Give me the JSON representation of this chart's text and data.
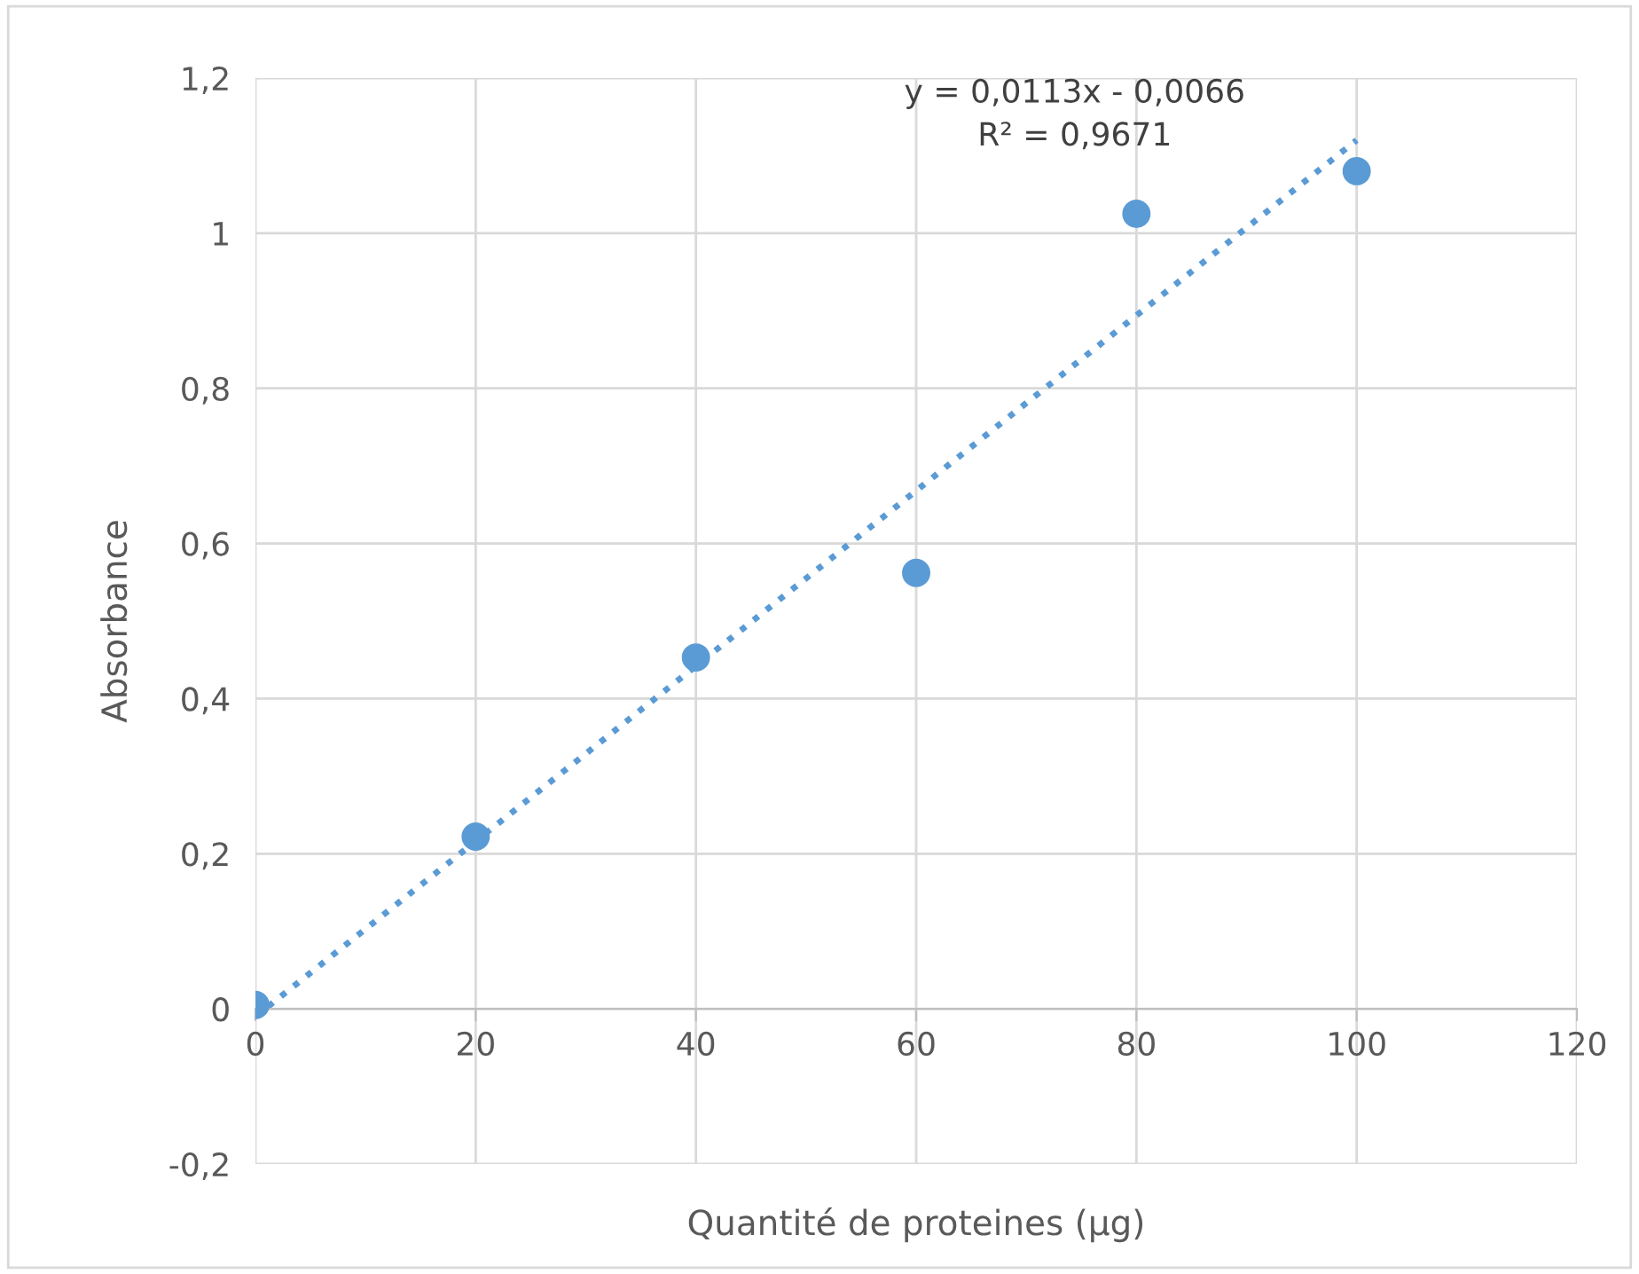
{
  "chart_data": {
    "type": "scatter",
    "xlabel": "Quantité de proteines (µg)",
    "ylabel": "Absorbance",
    "x": [
      0,
      20,
      40,
      60,
      80,
      100
    ],
    "series": [
      {
        "color": "#5b9bd5",
        "marker": "circle",
        "values": [
          0.005,
          0.222,
          0.453,
          0.562,
          1.025,
          1.08
        ]
      },
      {
        "type": "line",
        "color": "#5b9bd5",
        "line_style": "dotted",
        "marker": "none",
        "x": [
          0,
          100
        ],
        "values": [
          -0.01,
          1.12
        ]
      }
    ],
    "annotations": [
      "y = 0,0113x - 0,0066\nR² = 0,9671"
    ],
    "xlim": [
      0,
      120
    ],
    "xticks": [
      0,
      20,
      40,
      60,
      80,
      100,
      120
    ],
    "ylim": [
      -0.2,
      1.2
    ],
    "yticks": [
      {
        "value": -0.2,
        "label": "-0,2"
      },
      0,
      {
        "value": 0.2,
        "label": "0,2"
      },
      {
        "value": 0.4,
        "label": "0,4"
      },
      {
        "value": 0.6,
        "label": "0,6"
      },
      {
        "value": 0.8,
        "label": "0,8"
      },
      1,
      {
        "value": 1.2,
        "label": "1,2"
      }
    ],
    "grid": true
  }
}
